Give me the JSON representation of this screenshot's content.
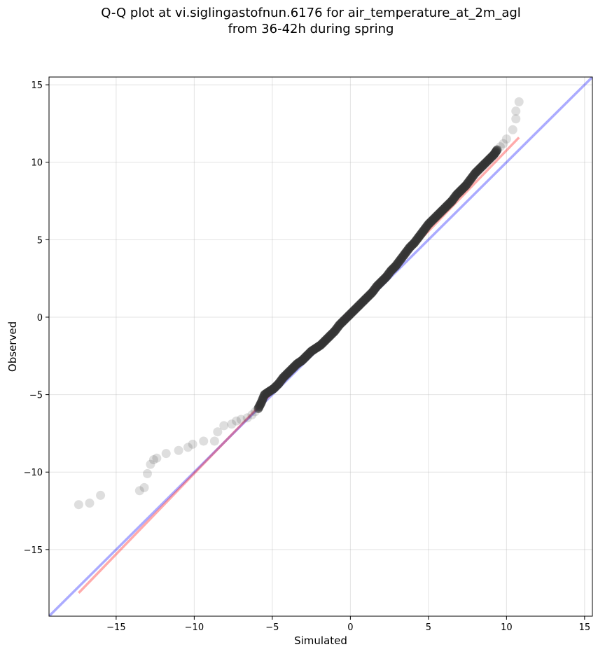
{
  "chart_data": {
    "type": "scatter",
    "title_line1": "Q-Q plot at vi.siglingastofnun.6176 for air_temperature_at_2m_agl",
    "title_line2": "from 36-42h during spring",
    "xlabel": "Simulated",
    "ylabel": "Observed",
    "xlim": [
      -19.3,
      15.5
    ],
    "ylim": [
      -19.3,
      15.5
    ],
    "xticks": [
      -15,
      -10,
      -5,
      0,
      5,
      10,
      15
    ],
    "yticks": [
      -15,
      -10,
      -5,
      0,
      5,
      10,
      15
    ],
    "grid": true,
    "colors": {
      "points": "#333333",
      "fit_line": "#ff0000",
      "identity_line": "#0000ff",
      "grid": "#b0b0b0"
    },
    "points": {
      "x": [
        -17.4,
        -16.7,
        -16.0,
        -13.5,
        -13.2,
        -13.0,
        -12.8,
        -12.6,
        -12.4,
        -11.8,
        -11.0,
        -10.4,
        -10.1,
        -9.4,
        -8.7,
        -8.5,
        -8.1,
        -7.6,
        -7.3,
        -7.0,
        -6.6,
        -6.3,
        -6.1,
        -5.9,
        -5.7,
        -5.5,
        -5.2,
        -4.9,
        -4.6,
        -4.3,
        -4.0,
        -3.7,
        -3.4,
        -3.1,
        -2.8,
        -2.5,
        -2.2,
        -1.9,
        -1.6,
        -1.3,
        -1.0,
        -0.7,
        -0.4,
        -0.1,
        0.2,
        0.5,
        0.8,
        1.1,
        1.4,
        1.7,
        2.0,
        2.3,
        2.6,
        2.9,
        3.2,
        3.5,
        3.8,
        4.1,
        4.4,
        4.7,
        5.0,
        5.3,
        5.6,
        5.9,
        6.2,
        6.5,
        6.8,
        7.1,
        7.4,
        7.7,
        8.0,
        8.3,
        8.6,
        8.9,
        9.2,
        9.4,
        9.6,
        9.8,
        10.0,
        10.4,
        10.6,
        10.6,
        10.8
      ],
      "y": [
        -12.1,
        -12.0,
        -11.5,
        -11.2,
        -11.0,
        -10.1,
        -9.5,
        -9.2,
        -9.1,
        -8.8,
        -8.6,
        -8.4,
        -8.2,
        -8.0,
        -8.0,
        -7.4,
        -7.0,
        -6.9,
        -6.7,
        -6.6,
        -6.5,
        -6.3,
        -6.1,
        -5.9,
        -5.5,
        -5.0,
        -4.8,
        -4.6,
        -4.3,
        -3.9,
        -3.6,
        -3.3,
        -3.0,
        -2.8,
        -2.5,
        -2.2,
        -2.0,
        -1.8,
        -1.5,
        -1.2,
        -0.9,
        -0.5,
        -0.2,
        0.1,
        0.4,
        0.7,
        1.0,
        1.3,
        1.6,
        2.0,
        2.3,
        2.6,
        3.0,
        3.3,
        3.7,
        4.1,
        4.5,
        4.8,
        5.2,
        5.6,
        6.0,
        6.3,
        6.6,
        6.9,
        7.2,
        7.5,
        7.9,
        8.2,
        8.5,
        8.9,
        9.3,
        9.6,
        9.9,
        10.2,
        10.5,
        10.8,
        11.0,
        11.2,
        11.5,
        12.1,
        12.8,
        13.3,
        13.9
      ]
    },
    "fit_line": {
      "x": [
        -17.4,
        10.8
      ],
      "y": [
        -17.8,
        11.6
      ]
    },
    "identity_line": {
      "x": [
        -19.3,
        15.5
      ],
      "y": [
        -19.3,
        15.5
      ]
    }
  }
}
